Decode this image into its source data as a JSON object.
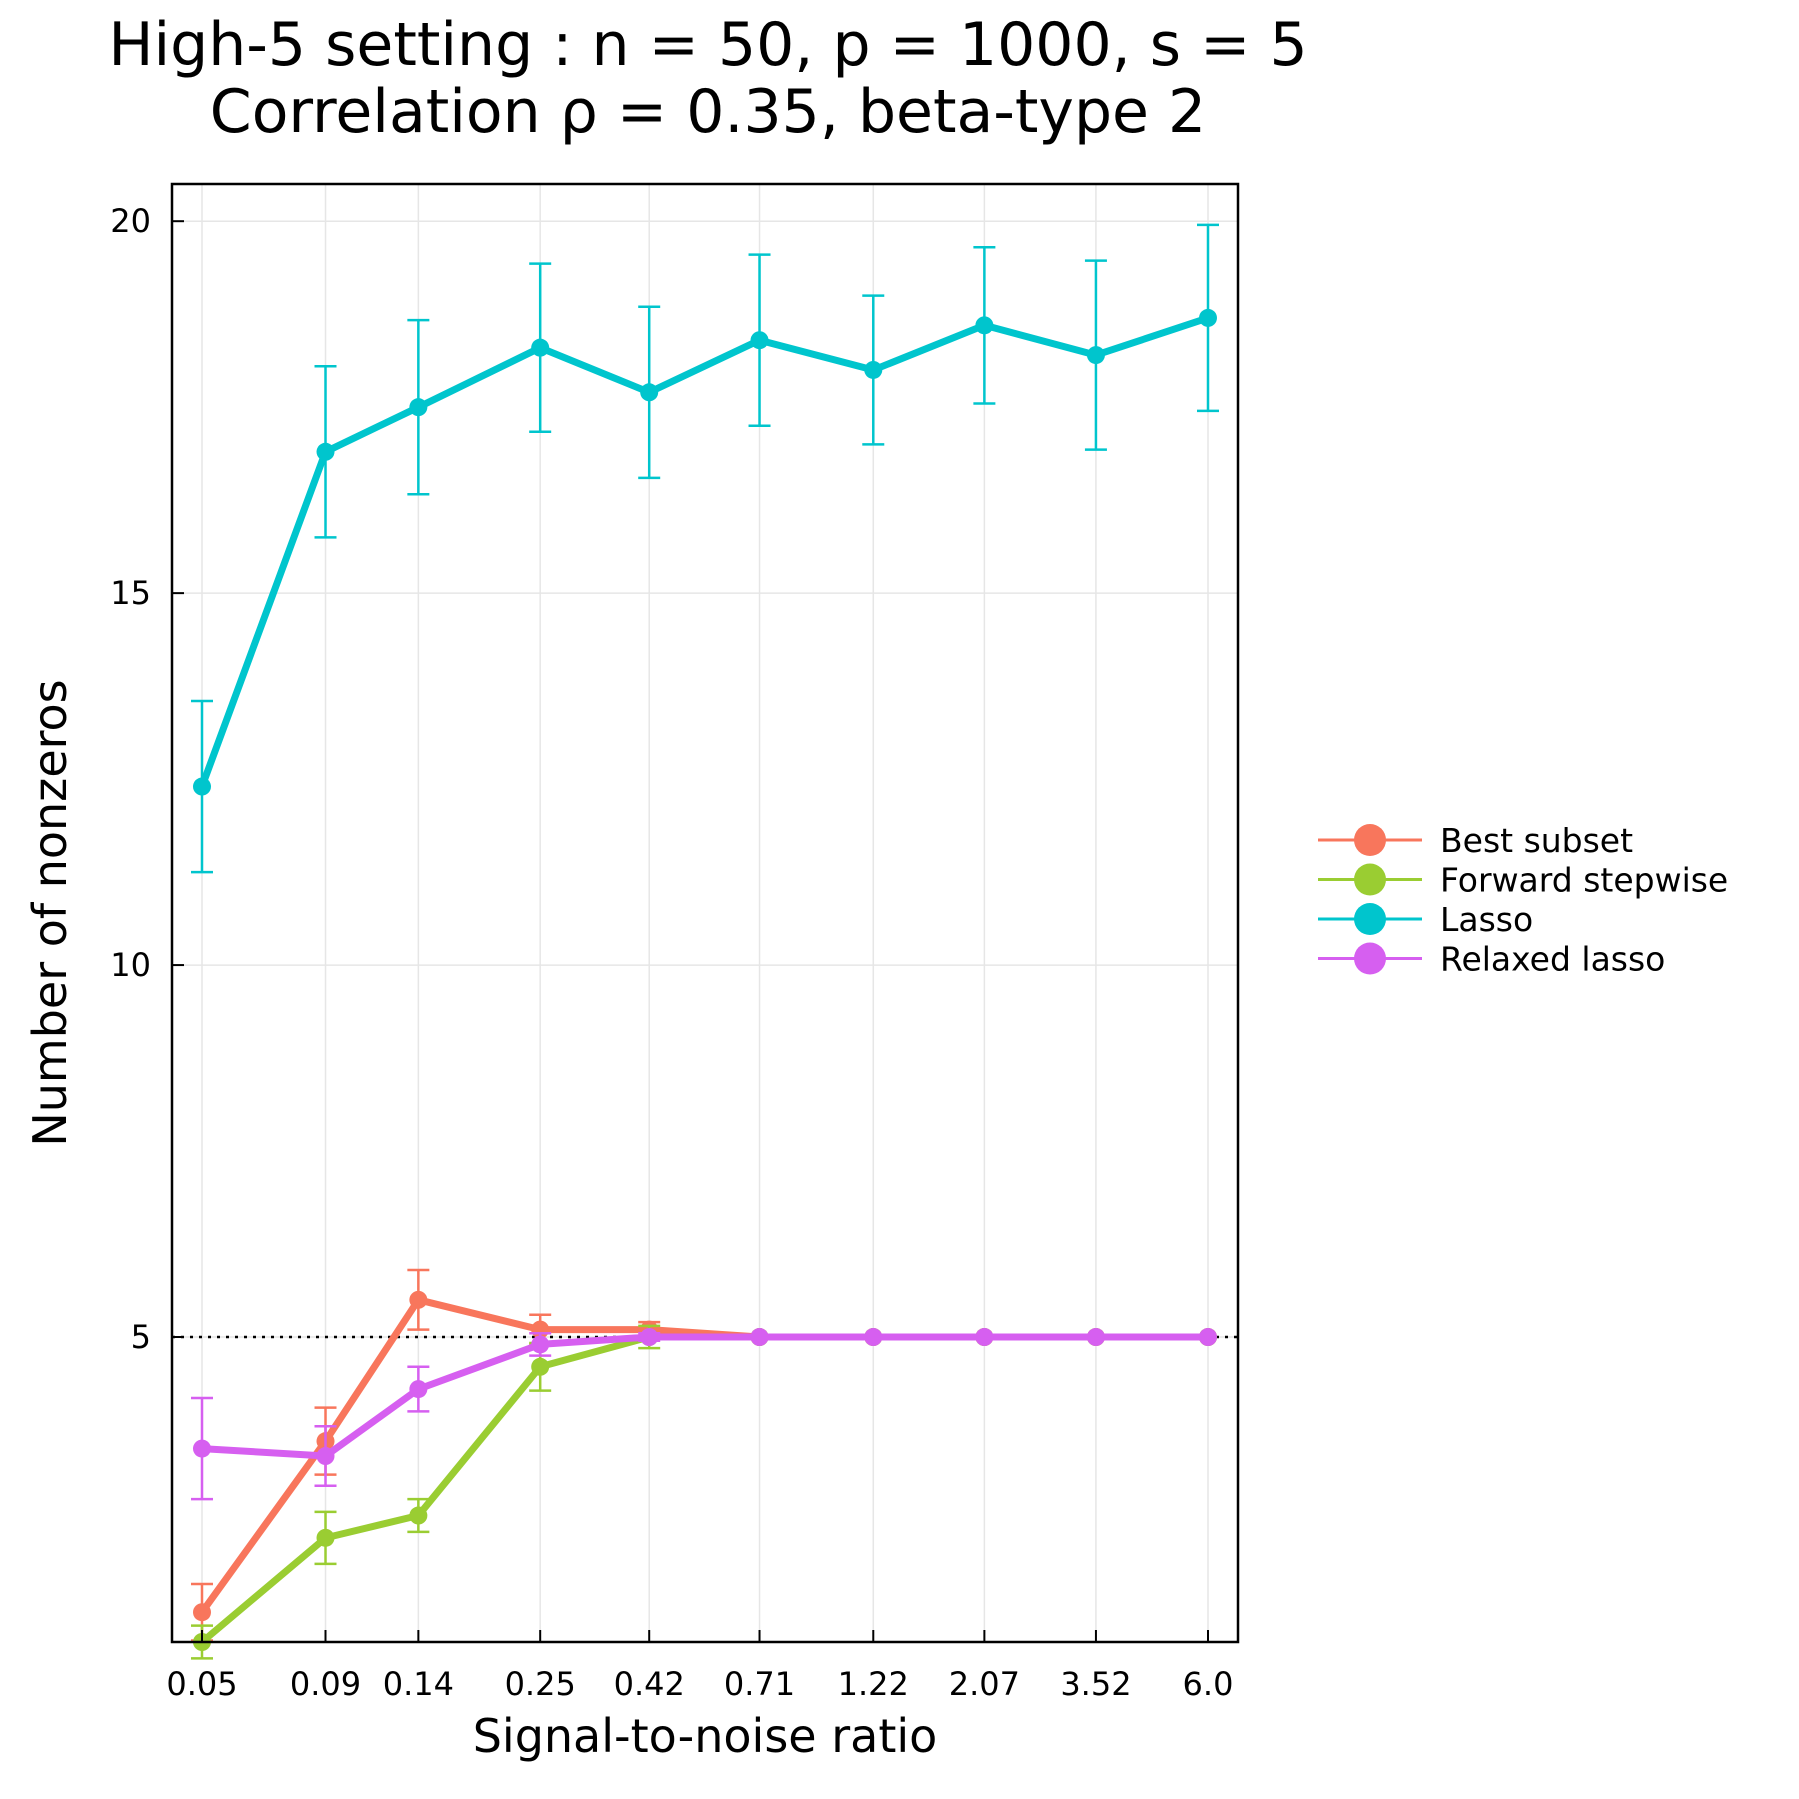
{
  "chart_data": {
    "type": "line",
    "title": [
      "High-5 setting : n = 50, p = 1000, s = 5",
      "Correlation ρ = 0.35, beta-type 2"
    ],
    "xlabel": "Signal-to-noise ratio",
    "ylabel": "Number of nonzeros",
    "x_scale": "log",
    "x": [
      0.05,
      0.09,
      0.14,
      0.25,
      0.42,
      0.71,
      1.22,
      2.07,
      3.52,
      6.0
    ],
    "x_tick_labels": [
      "0.05",
      "0.09",
      "0.14",
      "0.25",
      "0.42",
      "0.71",
      "1.22",
      "2.07",
      "3.52",
      "6.0"
    ],
    "y_ticks": [
      5,
      10,
      15,
      20
    ],
    "y_tick_labels": [
      "5",
      "10",
      "15",
      "20"
    ],
    "ylim": [
      0.9,
      20.5
    ],
    "grid": true,
    "legend_position": "right",
    "reference_line": {
      "y": 5,
      "style": "dotted",
      "color": "#000000"
    },
    "series": [
      {
        "name": "Best subset",
        "color": "#f8765c",
        "values": [
          1.3,
          3.6,
          5.5,
          5.1,
          5.1,
          5.0,
          5.0,
          5.0,
          5.0,
          5.0
        ],
        "errors": [
          0.38,
          0.45,
          0.4,
          0.2,
          0.1,
          0.0,
          0.0,
          0.0,
          0.0,
          0.0
        ]
      },
      {
        "name": "Forward stepwise",
        "color": "#9acd32",
        "values": [
          0.9,
          2.3,
          2.6,
          4.6,
          5.0,
          5.0,
          5.0,
          5.0,
          5.0,
          5.0
        ],
        "errors": [
          0.22,
          0.35,
          0.22,
          0.32,
          0.15,
          0.0,
          0.0,
          0.0,
          0.0,
          0.0
        ]
      },
      {
        "name": "Lasso",
        "color": "#00c5cd",
        "values": [
          12.4,
          16.9,
          17.5,
          18.3,
          17.7,
          18.4,
          18.0,
          18.6,
          18.2,
          18.7
        ],
        "errors": [
          1.15,
          1.15,
          1.17,
          1.13,
          1.15,
          1.15,
          1.0,
          1.05,
          1.27,
          1.25
        ]
      },
      {
        "name": "Relaxed lasso",
        "color": "#d65ff0",
        "values": [
          3.5,
          3.4,
          4.3,
          4.9,
          5.0,
          5.0,
          5.0,
          5.0,
          5.0,
          5.0
        ],
        "errors": [
          0.68,
          0.4,
          0.3,
          0.15,
          0.05,
          0.0,
          0.0,
          0.0,
          0.0,
          0.0
        ]
      }
    ]
  }
}
